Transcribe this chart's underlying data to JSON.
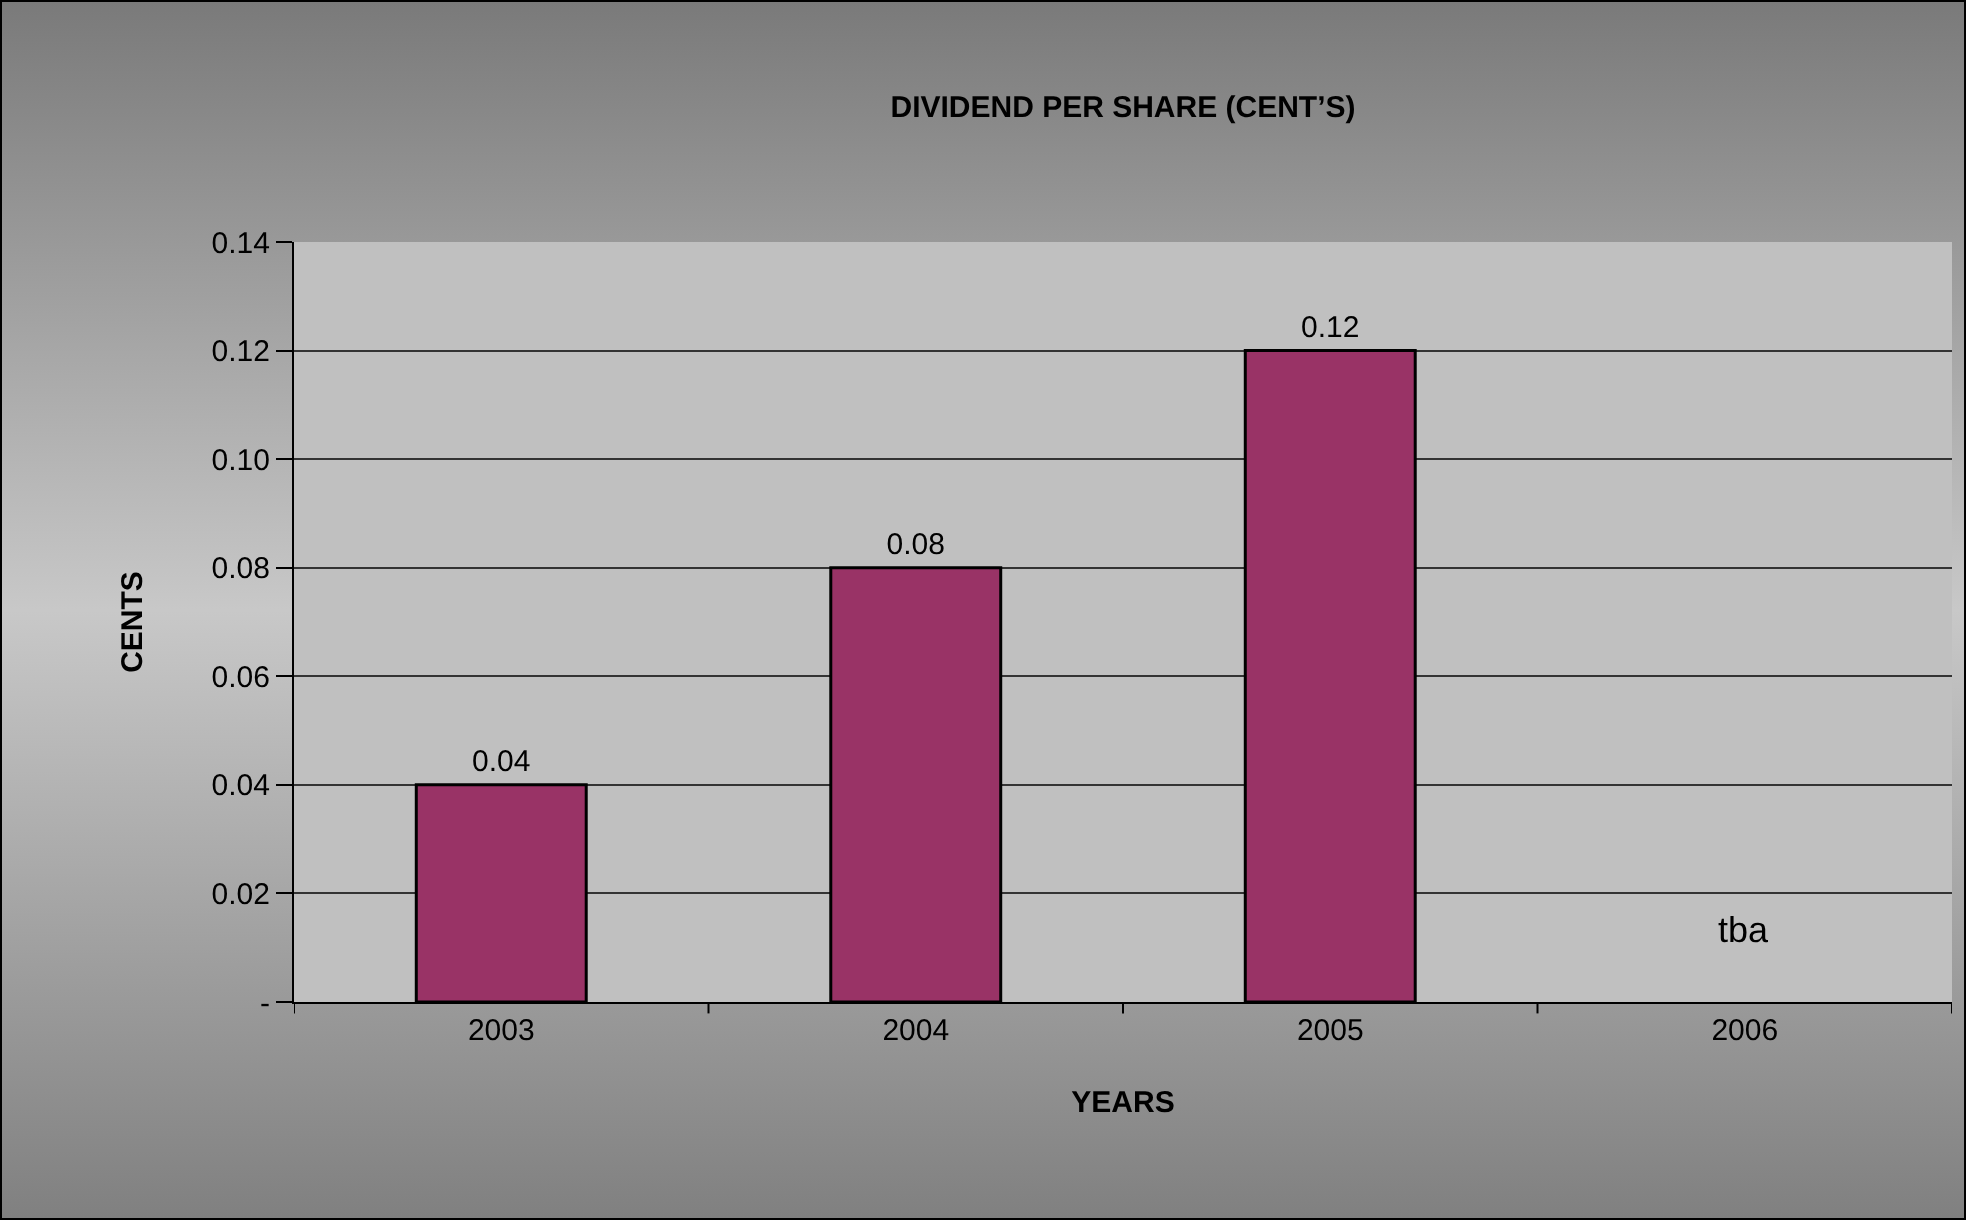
{
  "chart_data": {
    "type": "bar",
    "title": "DIVIDEND PER SHARE (CENT’S)",
    "xlabel": "YEARS",
    "ylabel": "CENTS",
    "categories": [
      "2003",
      "2004",
      "2005",
      "2006"
    ],
    "values": [
      0.04,
      0.08,
      0.12,
      null
    ],
    "color": "#993366",
    "value_labels": [
      "0.04",
      "0.08",
      "0.12",
      "tba"
    ],
    "ylim": [
      0,
      0.14
    ],
    "yticks": [
      {
        "value": 0,
        "label": "-"
      },
      {
        "value": 0.02,
        "label": "0.02"
      },
      {
        "value": 0.04,
        "label": "0.04"
      },
      {
        "value": 0.06,
        "label": "0.06"
      },
      {
        "value": 0.08,
        "label": "0.08"
      },
      {
        "value": 0.1,
        "label": "0.10"
      },
      {
        "value": 0.12,
        "label": "0.12"
      },
      {
        "value": 0.14,
        "label": "0.14"
      }
    ],
    "grid": "y"
  }
}
